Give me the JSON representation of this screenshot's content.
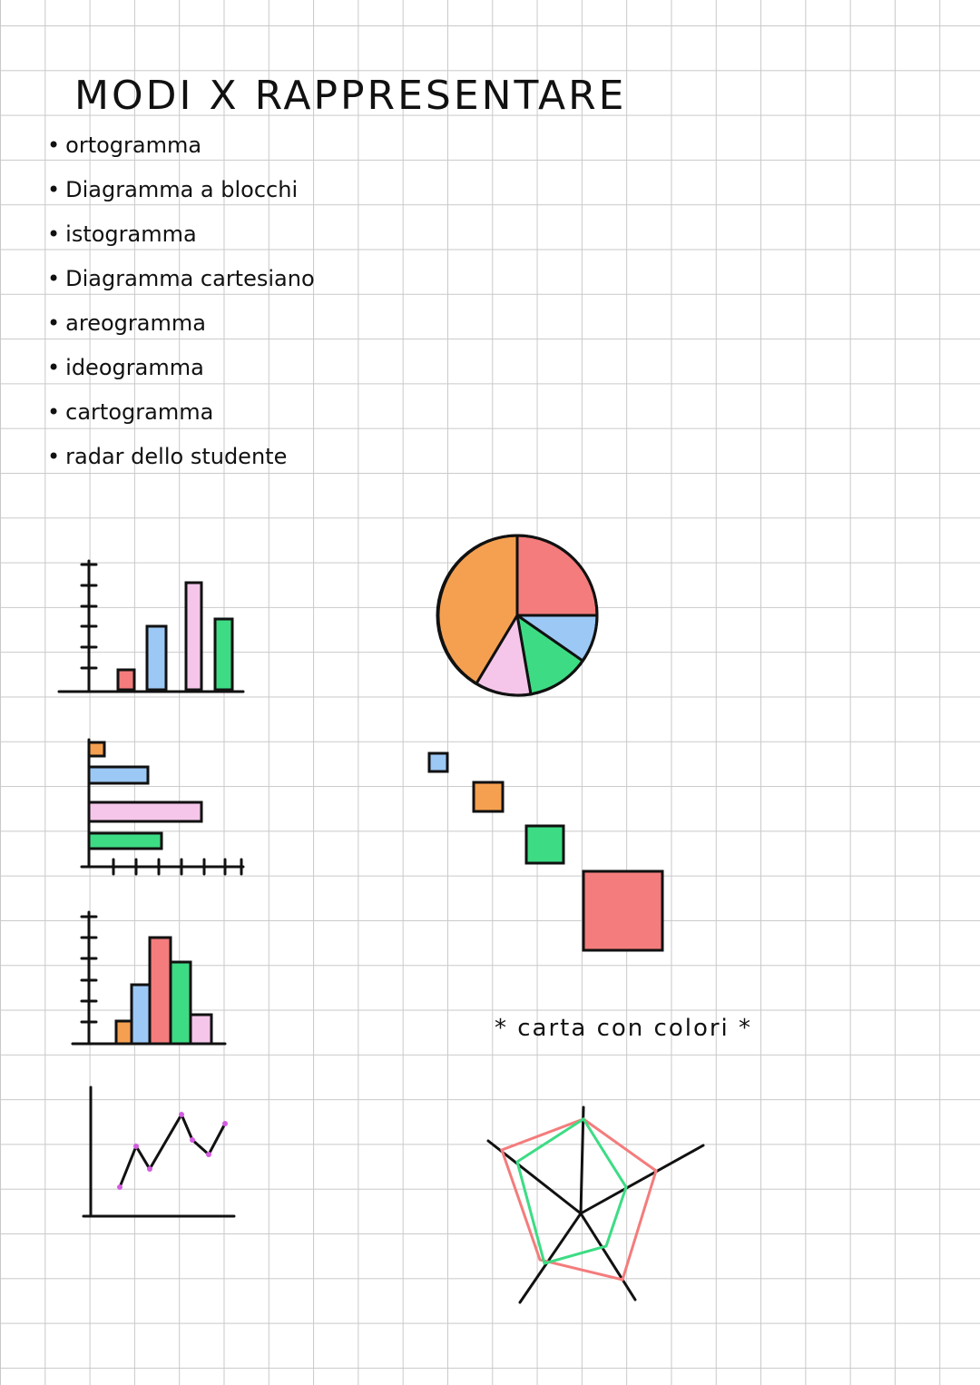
{
  "header": {
    "title": "MODI X RAPPRESENTARE"
  },
  "list": {
    "items": [
      "ortogramma",
      "Diagramma a blocchi",
      "istogramma",
      "Diagramma cartesiano",
      "areogramma",
      "ideogramma",
      "cartogramma",
      "radar dello studente"
    ]
  },
  "note": "* carta con colori *"
}
